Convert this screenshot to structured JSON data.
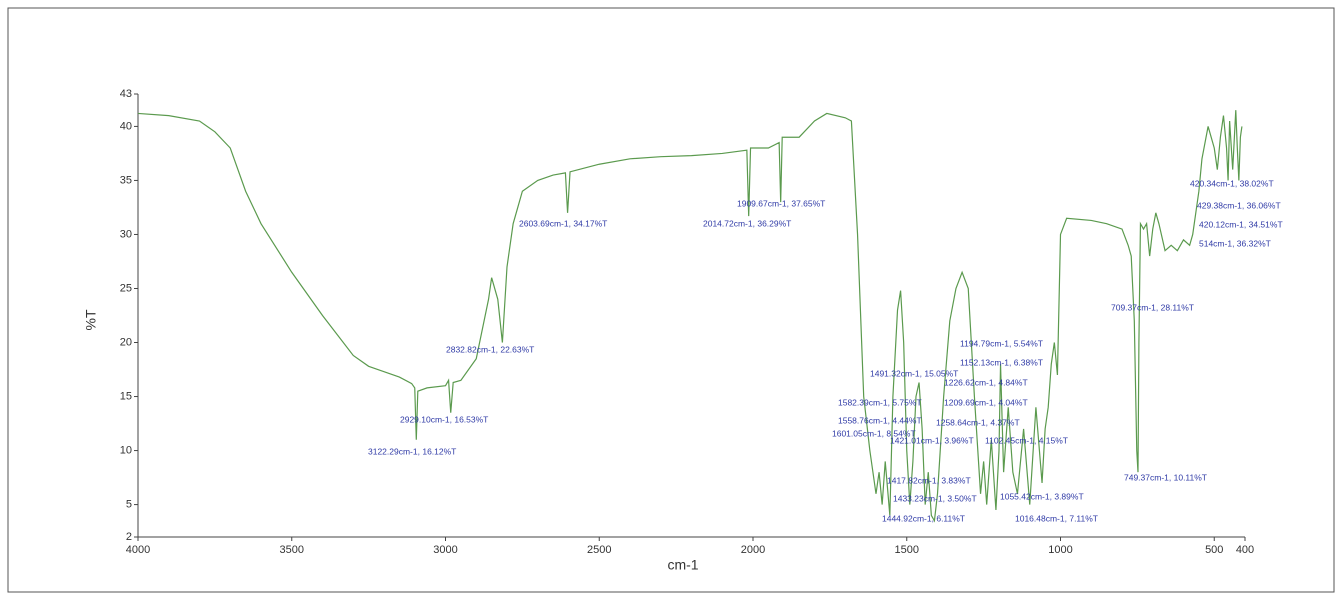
{
  "chart_data": {
    "type": "line",
    "xlabel": "cm-1",
    "ylabel": "%T",
    "color": "#5b9a4e",
    "xlim": [
      4000,
      400
    ],
    "ylim": [
      2,
      43
    ],
    "xticks": [
      4000,
      3500,
      3000,
      2500,
      2000,
      1500,
      1000,
      500,
      400
    ],
    "yticks": [
      2,
      5,
      10,
      15,
      20,
      25,
      30,
      35,
      40,
      43
    ],
    "x": [
      4000,
      3900,
      3800,
      3750,
      3700,
      3650,
      3600,
      3500,
      3400,
      3300,
      3250,
      3200,
      3150,
      3110,
      3100,
      3095,
      3090,
      3060,
      3000,
      2990,
      2983,
      2975,
      2950,
      2900,
      2860,
      2850,
      2830,
      2815,
      2800,
      2780,
      2750,
      2700,
      2650,
      2610,
      2603,
      2595,
      2500,
      2400,
      2300,
      2200,
      2100,
      2020,
      2014,
      2008,
      1950,
      1915,
      1910,
      1905,
      1850,
      1800,
      1760,
      1700,
      1680,
      1660,
      1640,
      1620,
      1600,
      1590,
      1580,
      1570,
      1555,
      1545,
      1530,
      1520,
      1510,
      1500,
      1490,
      1480,
      1470,
      1460,
      1450,
      1440,
      1430,
      1420,
      1410,
      1400,
      1380,
      1360,
      1340,
      1320,
      1300,
      1280,
      1260,
      1250,
      1240,
      1225,
      1210,
      1200,
      1195,
      1185,
      1170,
      1155,
      1140,
      1120,
      1100,
      1080,
      1060,
      1050,
      1040,
      1030,
      1020,
      1010,
      1000,
      980,
      900,
      850,
      800,
      780,
      770,
      760,
      752,
      748,
      745,
      740,
      730,
      720,
      710,
      700,
      690,
      680,
      660,
      640,
      620,
      600,
      580,
      570,
      560,
      550,
      540,
      520,
      510,
      500,
      490,
      480,
      470,
      460,
      455,
      450,
      440,
      430,
      425,
      420,
      415,
      410
    ],
    "values": [
      41.2,
      41,
      40.5,
      39.5,
      38,
      34,
      31,
      26.5,
      22.5,
      18.8,
      17.8,
      17.3,
      16.8,
      16.2,
      15.8,
      11,
      15.5,
      15.8,
      16,
      16.5,
      13.5,
      16.3,
      16.5,
      18.5,
      24,
      26,
      24,
      20,
      27,
      31,
      34,
      35,
      35.5,
      35.7,
      32,
      35.8,
      36.5,
      37,
      37.2,
      37.3,
      37.5,
      37.8,
      31.7,
      38,
      38,
      38.5,
      33,
      39,
      39,
      40.5,
      41.2,
      40.8,
      40.5,
      30,
      15,
      10,
      6,
      8,
      5,
      9,
      4,
      15,
      23,
      24.8,
      20,
      10,
      5,
      9,
      15,
      16.3,
      12,
      5,
      8,
      4,
      3.5,
      6,
      15,
      22,
      25,
      26.5,
      25,
      15,
      6,
      9,
      5,
      11,
      4.5,
      10,
      18,
      8,
      14,
      8,
      6,
      12,
      5,
      14,
      7,
      12,
      14,
      18,
      20,
      17,
      30,
      31.5,
      31.3,
      31,
      30.5,
      29,
      28,
      22,
      10,
      8,
      20,
      31,
      30.5,
      31,
      28,
      30.5,
      32,
      31,
      28.5,
      29,
      28.5,
      29.5,
      29,
      30,
      32,
      34,
      37,
      40,
      39,
      38,
      36,
      39,
      41,
      38,
      35,
      40.5,
      36,
      41.5,
      38,
      35,
      39,
      40
    ],
    "annotations": [
      "3122.29cm-1, 16.12%T",
      "2929.10cm-1, 16.53%T",
      "2832.82cm-1, 22.63%T",
      "2603.69cm-1, 34.17%T",
      "2014.72cm-1, 36.29%T",
      "1909.67cm-1, 37.65%T",
      "1491.32cm-1, 15.05%T",
      "1582.39cm-1, 5.75%T",
      "1558.76cm-1, 4.44%T",
      "1601.05cm-1, 8.54%T",
      "1421.01cm-1, 3.96%T",
      "1417.82cm-1, 3.83%T",
      "1433.23cm-1, 3.50%T",
      "1444.92cm-1, 6.11%T",
      "1194.79cm-1, 5.54%T",
      "1152.13cm-1, 6.38%T",
      "1226.62cm-1, 4.84%T",
      "1209.69cm-1, 4.04%T",
      "1258.64cm-1, 4.37%T",
      "1102.45cm-1, 4.15%T",
      "1016.48cm-1, 7.11%T",
      "1055.42cm-1, 3.89%T",
      "749.37cm-1, 10.11%T",
      "709.37cm-1, 28.11%T",
      "420.34cm-1, 38.02%T",
      "429.38cm-1, 36.06%T",
      "420.12cm-1, 34.51%T",
      "514cm-1, 36.32%T"
    ]
  }
}
